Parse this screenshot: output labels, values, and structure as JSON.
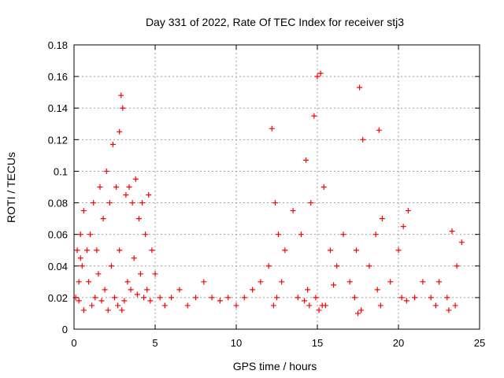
{
  "chart_data": {
    "type": "scatter",
    "title": "Day 331 of 2022, Rate Of TEC Index for receiver stj3",
    "xlabel": "GPS time / hours",
    "ylabel": "ROTI / TECUs",
    "xlim": [
      0,
      25
    ],
    "ylim": [
      0,
      0.18
    ],
    "xticks": [
      0,
      5,
      10,
      15,
      20,
      25
    ],
    "yticks": [
      0,
      0.02,
      0.04,
      0.06,
      0.08,
      0.1,
      0.12,
      0.14,
      0.16,
      0.18
    ],
    "xtick_labels": [
      "0",
      "5",
      "10",
      "15",
      "20",
      "25"
    ],
    "ytick_labels": [
      "0",
      "0.02",
      "0.04",
      "0.06",
      "0.08",
      "0.1",
      "0.12",
      "0.14",
      "0.16",
      "0.18"
    ],
    "grid": true,
    "marker": "+",
    "color": "#ff0000",
    "series": [
      {
        "x": [
          0.1,
          0.2,
          0.3,
          0.4,
          0.5,
          0.6,
          0.8,
          1.0,
          1.2,
          1.4,
          1.6,
          1.8,
          2.0,
          2.2,
          2.4,
          2.6,
          2.8,
          2.9,
          3.0,
          3.2,
          3.4,
          3.6,
          3.8,
          4.0,
          4.2,
          4.4,
          4.6,
          4.8,
          5.0,
          5.3,
          5.6,
          6.0,
          6.5,
          7.0,
          7.5,
          8.0,
          8.5,
          9.0,
          9.5,
          10.0,
          10.5,
          11.0,
          11.5,
          12.0,
          12.2,
          12.4,
          12.6,
          13.0,
          13.5,
          14.0,
          14.3,
          14.6,
          14.8,
          15.0,
          15.2,
          15.4,
          15.8,
          16.2,
          16.6,
          17.0,
          17.4,
          17.6,
          17.8,
          18.2,
          18.6,
          18.8,
          19.0,
          19.5,
          20.0,
          20.3,
          20.6,
          21.0,
          21.5,
          22.0,
          22.5,
          23.0,
          23.3,
          23.6,
          23.9,
          0.3,
          0.6,
          1.1,
          1.3,
          1.7,
          2.1,
          2.5,
          2.7,
          2.95,
          3.1,
          3.5,
          3.9,
          4.3,
          4.7,
          12.3,
          12.5,
          14.2,
          14.5,
          14.9,
          15.1,
          15.3,
          17.5,
          17.7,
          18.9,
          20.5,
          23.1,
          23.5,
          0.4,
          0.9,
          1.5,
          1.9,
          2.3,
          2.8,
          3.3,
          3.7,
          4.1,
          4.5,
          12.8,
          13.8,
          14.4,
          15.5,
          16.0,
          17.3,
          18.7,
          20.2,
          22.3
        ],
        "y": [
          0.02,
          0.05,
          0.03,
          0.06,
          0.04,
          0.075,
          0.05,
          0.06,
          0.08,
          0.05,
          0.09,
          0.07,
          0.1,
          0.08,
          0.117,
          0.09,
          0.125,
          0.148,
          0.14,
          0.085,
          0.09,
          0.08,
          0.095,
          0.07,
          0.08,
          0.06,
          0.085,
          0.05,
          0.035,
          0.02,
          0.015,
          0.02,
          0.025,
          0.015,
          0.02,
          0.03,
          0.02,
          0.018,
          0.02,
          0.015,
          0.02,
          0.025,
          0.03,
          0.04,
          0.127,
          0.08,
          0.06,
          0.05,
          0.075,
          0.06,
          0.107,
          0.08,
          0.135,
          0.16,
          0.162,
          0.09,
          0.05,
          0.04,
          0.06,
          0.03,
          0.05,
          0.153,
          0.12,
          0.04,
          0.06,
          0.126,
          0.07,
          0.03,
          0.05,
          0.065,
          0.075,
          0.02,
          0.03,
          0.02,
          0.03,
          0.02,
          0.062,
          0.04,
          0.055,
          0.018,
          0.012,
          0.015,
          0.02,
          0.018,
          0.012,
          0.02,
          0.015,
          0.012,
          0.018,
          0.025,
          0.022,
          0.02,
          0.018,
          0.015,
          0.02,
          0.018,
          0.015,
          0.02,
          0.012,
          0.015,
          0.01,
          0.012,
          0.015,
          0.018,
          0.012,
          0.015,
          0.045,
          0.03,
          0.035,
          0.025,
          0.04,
          0.05,
          0.03,
          0.045,
          0.035,
          0.025,
          0.03,
          0.02,
          0.025,
          0.015,
          0.028,
          0.02,
          0.025,
          0.02,
          0.015
        ]
      }
    ]
  }
}
